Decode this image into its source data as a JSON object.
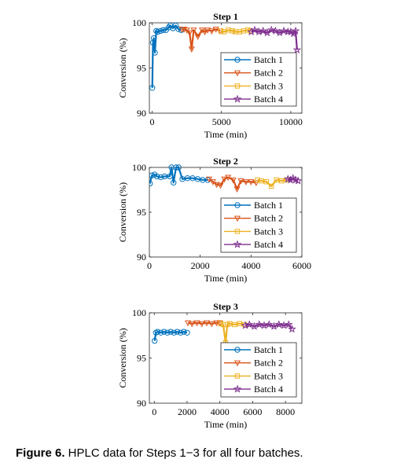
{
  "caption": {
    "label": "Figure 6.",
    "text": " HPLC data for Steps 1−3 for all four batches."
  },
  "colors": {
    "Batch 1": "#0072bd",
    "Batch 2": "#d95319",
    "Batch 3": "#edb120",
    "Batch 4": "#7e2f8e"
  },
  "chart_data": [
    {
      "type": "line",
      "title": "Step 1",
      "xlabel": "Time (min)",
      "ylabel": "Conversion (%)",
      "xlim": [
        -200,
        10800
      ],
      "ylim": [
        90,
        100
      ],
      "xticks": [
        0,
        5000,
        10000
      ],
      "xtick_labels": [
        "0",
        "5000",
        "10000"
      ],
      "yticks": [
        90,
        95,
        100
      ],
      "ytick_labels": [
        "90",
        "95",
        "100"
      ],
      "legend_position": "right",
      "series": [
        {
          "name": "Batch 1",
          "marker": "circle",
          "x": [
            10,
            60,
            120,
            200,
            300,
            400,
            600,
            800,
            1000,
            1200,
            1300,
            1500,
            1700,
            1900,
            2100
          ],
          "y": [
            92.8,
            97.8,
            98.3,
            96.7,
            99.1,
            99.0,
            99.1,
            99.2,
            99.2,
            99.5,
            99.7,
            99.4,
            99.7,
            99.3,
            99.2
          ]
        },
        {
          "name": "Batch 2",
          "marker": "triangle-down",
          "x": [
            2150,
            2300,
            2500,
            2700,
            2850,
            3000,
            3300,
            3600,
            3800,
            4000,
            4300,
            4600,
            4900
          ],
          "y": [
            99.3,
            99.3,
            99.2,
            98.9,
            97.1,
            99.2,
            98.5,
            99.2,
            99.0,
            99.2,
            99.1,
            99.3,
            99.1
          ]
        },
        {
          "name": "Batch 3",
          "marker": "square",
          "x": [
            4950,
            5200,
            5500,
            5800,
            6000,
            6300,
            6600,
            6900,
            7100
          ],
          "y": [
            99.1,
            99.0,
            99.2,
            99.1,
            99.0,
            99.0,
            99.1,
            99.2,
            99.1
          ]
        },
        {
          "name": "Batch 4",
          "marker": "star",
          "x": [
            7150,
            7400,
            7700,
            8000,
            8300,
            8600,
            8900,
            9200,
            9500,
            9800,
            10000,
            10200,
            10350,
            10450
          ],
          "y": [
            99.0,
            99.2,
            99.0,
            99.1,
            98.9,
            99.2,
            99.1,
            98.9,
            99.1,
            99.0,
            99.0,
            98.8,
            99.1,
            97.0
          ]
        }
      ]
    },
    {
      "type": "line",
      "title": "Step 2",
      "xlabel": "Time (min)",
      "ylabel": "Conversion (%)",
      "xlim": [
        0,
        6000
      ],
      "ylim": [
        90,
        100
      ],
      "xticks": [
        0,
        2000,
        4000,
        6000
      ],
      "xtick_labels": [
        "0",
        "2000",
        "4000",
        "6000"
      ],
      "yticks": [
        90,
        95,
        100
      ],
      "ytick_labels": [
        "90",
        "95",
        "100"
      ],
      "legend_position": "right",
      "series": [
        {
          "name": "Batch 1",
          "marker": "circle",
          "x": [
            20,
            100,
            200,
            300,
            450,
            600,
            800,
            870,
            950,
            1050,
            1150,
            1300,
            1500,
            1700,
            1900,
            2100,
            2300
          ],
          "y": [
            98.2,
            99.1,
            99.2,
            99.0,
            98.9,
            99.0,
            99.0,
            100.0,
            98.3,
            100.0,
            100.0,
            98.7,
            98.8,
            98.8,
            98.7,
            98.6,
            98.6
          ]
        },
        {
          "name": "Batch 2",
          "marker": "triangle-down",
          "x": [
            2350,
            2500,
            2650,
            2800,
            2950,
            3100,
            3300,
            3450,
            3600,
            3800,
            4000,
            4200
          ],
          "y": [
            98.7,
            98.4,
            98.1,
            98.0,
            98.7,
            98.9,
            98.6,
            97.6,
            98.5,
            98.4,
            98.4,
            98.3
          ]
        },
        {
          "name": "Batch 3",
          "marker": "square",
          "x": [
            4250,
            4400,
            4600,
            4800,
            5000,
            5200,
            5400
          ],
          "y": [
            98.6,
            98.5,
            98.4,
            97.9,
            98.6,
            98.5,
            98.6
          ]
        },
        {
          "name": "Batch 4",
          "marker": "star",
          "x": [
            5450,
            5550,
            5650,
            5750,
            5850
          ],
          "y": [
            98.7,
            98.6,
            98.8,
            98.6,
            98.5
          ]
        }
      ]
    },
    {
      "type": "line",
      "title": "Step 3",
      "xlabel": "Time (min)",
      "ylabel": "Conversion (%)",
      "xlim": [
        -300,
        9000
      ],
      "ylim": [
        90,
        100
      ],
      "xticks": [
        0,
        2000,
        4000,
        6000,
        8000
      ],
      "xtick_labels": [
        "0",
        "2000",
        "4000",
        "6000",
        "8000"
      ],
      "yticks": [
        90,
        95,
        100
      ],
      "ytick_labels": [
        "90",
        "95",
        "100"
      ],
      "legend_position": "right",
      "series": [
        {
          "name": "Batch 1",
          "marker": "circle",
          "x": [
            20,
            100,
            200,
            400,
            600,
            800,
            1000,
            1200,
            1400,
            1600,
            1800,
            2000
          ],
          "y": [
            96.9,
            97.8,
            97.9,
            97.8,
            97.9,
            97.8,
            97.9,
            97.8,
            97.9,
            97.8,
            97.9,
            97.8
          ]
        },
        {
          "name": "Batch 2",
          "marker": "triangle-down",
          "x": [
            2050,
            2300,
            2600,
            2900,
            3200,
            3500,
            3800,
            4000
          ],
          "y": [
            98.9,
            98.8,
            98.9,
            98.8,
            98.9,
            98.8,
            98.9,
            98.9
          ]
        },
        {
          "name": "Batch 3",
          "marker": "square",
          "x": [
            4050,
            4200,
            4350,
            4450,
            4600,
            4900,
            5200,
            5500
          ],
          "y": [
            98.8,
            98.7,
            96.7,
            98.7,
            98.8,
            98.7,
            98.8,
            98.7
          ]
        },
        {
          "name": "Batch 4",
          "marker": "star",
          "x": [
            5550,
            5800,
            6100,
            6400,
            6700,
            7000,
            7300,
            7600,
            7900,
            8200,
            8400
          ],
          "y": [
            98.6,
            98.7,
            98.5,
            98.7,
            98.6,
            98.7,
            98.5,
            98.7,
            98.6,
            98.7,
            98.2
          ]
        }
      ]
    }
  ]
}
